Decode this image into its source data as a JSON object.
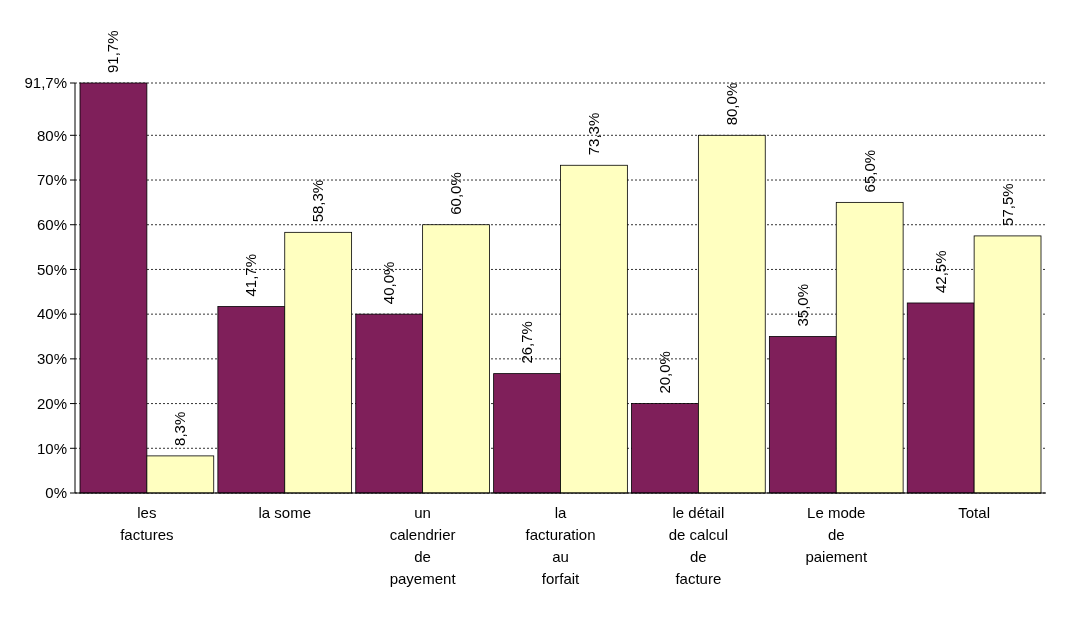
{
  "chart_data": {
    "type": "bar",
    "categories": [
      "les factures",
      "la some",
      "un calendrier de payement",
      "la facturation au forfait",
      "le détail de calcul de facture",
      "Le mode de paiement",
      "Total"
    ],
    "series": [
      {
        "color": "#7f1f5a",
        "values": [
          91.7,
          41.7,
          40.0,
          26.7,
          20.0,
          35.0,
          42.5
        ],
        "value_labels": [
          "91,7%",
          "41,7%",
          "40,0%",
          "26,7%",
          "20,0%",
          "35,0%",
          "42,5%"
        ]
      },
      {
        "color": "#ffffc0",
        "values": [
          8.3,
          58.3,
          60.0,
          73.3,
          80.0,
          65.0,
          57.5
        ],
        "value_labels": [
          "8,3%",
          "58,3%",
          "60,0%",
          "73,3%",
          "80,0%",
          "65,0%",
          "57,5%"
        ]
      }
    ],
    "ylim": [
      0,
      91.7
    ],
    "yticks": [
      {
        "value": 0,
        "label": "0%"
      },
      {
        "value": 10,
        "label": "10%"
      },
      {
        "value": 20,
        "label": "20%"
      },
      {
        "value": 30,
        "label": "30%"
      },
      {
        "value": 40,
        "label": "40%"
      },
      {
        "value": 50,
        "label": "50%"
      },
      {
        "value": 60,
        "label": "60%"
      },
      {
        "value": 70,
        "label": "70%"
      },
      {
        "value": 80,
        "label": "80%"
      },
      {
        "value": 91.7,
        "label": "91,7%"
      }
    ],
    "grid": "y"
  }
}
